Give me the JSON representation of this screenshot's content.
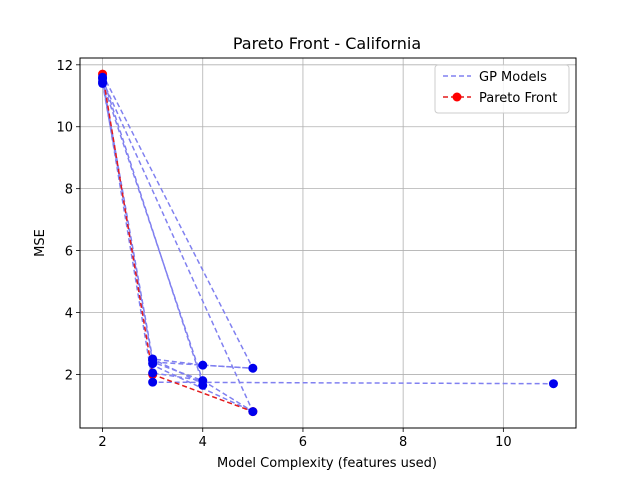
{
  "chart_data": {
    "type": "line",
    "title": "Pareto Front - California",
    "xlabel": "Model Complexity (features used)",
    "ylabel": "MSE",
    "xlim": [
      1.55,
      11.45
    ],
    "ylim": [
      0.27,
      12.22
    ],
    "xticks": [
      "2",
      "4",
      "6",
      "8",
      "10"
    ],
    "yticks": [
      "2",
      "4",
      "6",
      "8",
      "10",
      "12"
    ],
    "grid": true,
    "legend_position": "top-right",
    "series": [
      {
        "name": "GP Models",
        "style": "dashed",
        "color": "#8080f0",
        "segments": [
          [
            [
              2,
              11.55
            ],
            [
              3,
              2.5
            ],
            [
              4,
              2.3
            ],
            [
              5,
              2.2
            ]
          ],
          [
            [
              2,
              11.4
            ],
            [
              3,
              2.4
            ],
            [
              4,
              1.8
            ],
            [
              5,
              0.8
            ]
          ],
          [
            [
              2,
              11.5
            ],
            [
              3,
              1.75
            ],
            [
              11,
              1.7
            ]
          ],
          [
            [
              2,
              11.6
            ],
            [
              4,
              1.7
            ],
            [
              3,
              2.5
            ]
          ],
          [
            [
              2,
              11.45
            ],
            [
              4,
              1.8
            ],
            [
              3,
              2.05
            ]
          ],
          [
            [
              2,
              11.7
            ],
            [
              5,
              2.2
            ],
            [
              3,
              2.4
            ]
          ],
          [
            [
              2,
              11.5
            ],
            [
              5,
              0.8
            ],
            [
              3,
              2.3
            ]
          ]
        ]
      },
      {
        "name": "Pareto Front",
        "style": "dashed",
        "color": "#e41a1c",
        "points": [
          [
            2,
            11.7
          ],
          [
            3,
            2.0
          ],
          [
            5,
            0.8
          ]
        ]
      }
    ],
    "points": [
      [
        2,
        11.4
      ],
      [
        2,
        11.45
      ],
      [
        2,
        11.55
      ],
      [
        2,
        11.6
      ],
      [
        3,
        1.75
      ],
      [
        3,
        2.05
      ],
      [
        3,
        2.35
      ],
      [
        3,
        2.45
      ],
      [
        3,
        2.5
      ],
      [
        4,
        1.65
      ],
      [
        4,
        1.8
      ],
      [
        4,
        2.3
      ],
      [
        5,
        2.2
      ],
      [
        5,
        0.8
      ],
      [
        11,
        1.7
      ]
    ],
    "point_color": "#0000ee",
    "pareto_marker_color": "#ff0000"
  }
}
